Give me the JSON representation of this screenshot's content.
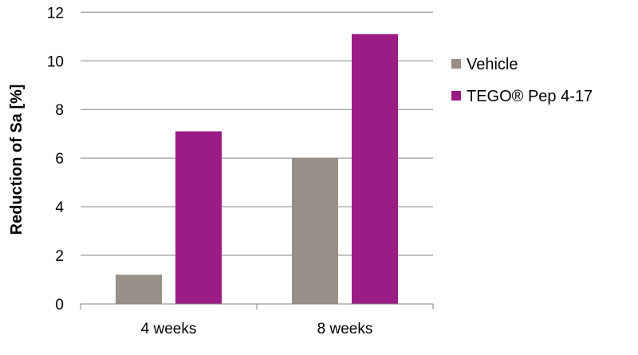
{
  "chart_data": {
    "type": "bar",
    "title": "",
    "xlabel": "",
    "ylabel": "Reduction of Sa [%]",
    "ylim": [
      0,
      12
    ],
    "yticks": [
      0,
      2,
      4,
      6,
      8,
      10,
      12
    ],
    "grid": true,
    "legend_position": "right",
    "categories": [
      "4 weeks",
      "8 weeks"
    ],
    "series": [
      {
        "name": "Vehicle",
        "values": [
          1.2,
          6.0
        ],
        "color": "#978f88"
      },
      {
        "name": "TEGO® Pep 4-17",
        "values": [
          7.1,
          11.1
        ],
        "color": "#9b1c84"
      }
    ]
  }
}
